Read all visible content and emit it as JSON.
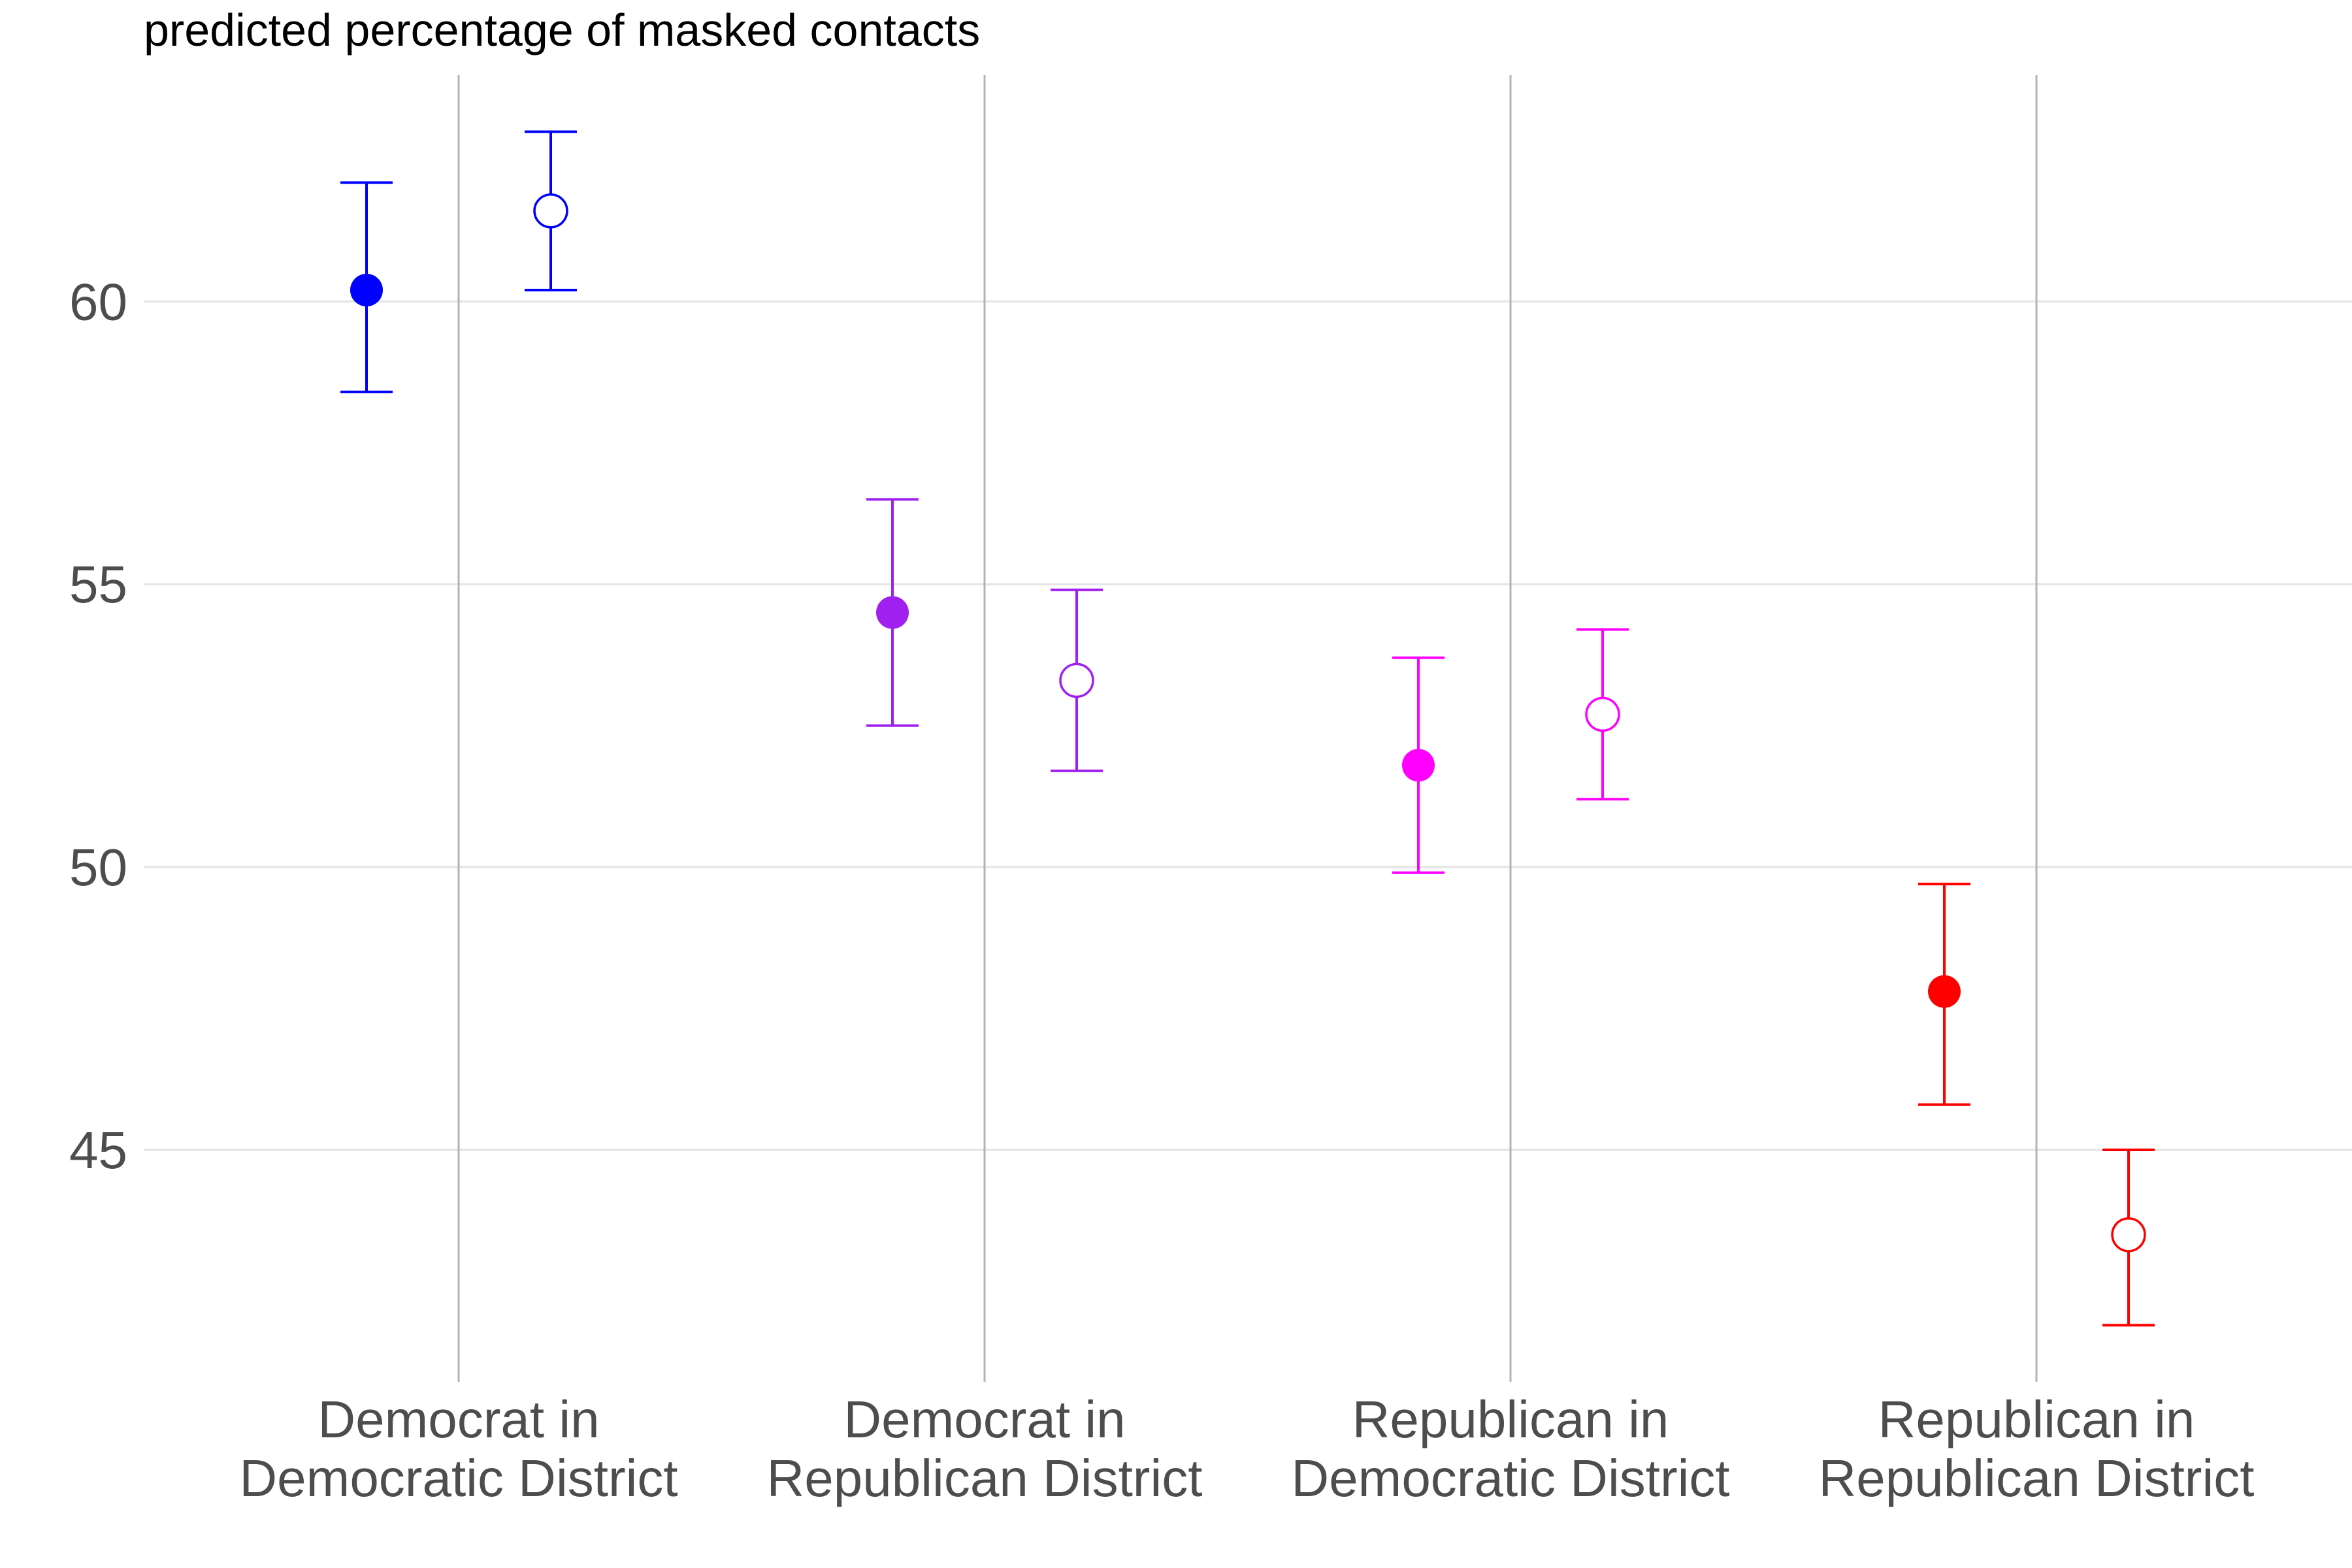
{
  "chart_data": {
    "type": "errorbar",
    "title": "predicted percentage of masked contacts",
    "xlabel": "",
    "ylabel": "",
    "ylim": [
      40.9,
      64.0
    ],
    "yticks": [
      45,
      50,
      55,
      60
    ],
    "grid": true,
    "categories": [
      [
        "Democrat in",
        "Democratic District"
      ],
      [
        "Democrat in",
        "Republican District"
      ],
      [
        "Republican in",
        "Democratic District"
      ],
      [
        "Republican in",
        "Republican District"
      ]
    ],
    "colors": [
      "#0000ff",
      "#a020f0",
      "#ff00ff",
      "#ff0000"
    ],
    "series": [
      {
        "marker": "filled-circle",
        "values": [
          60.2,
          54.5,
          51.8,
          47.8
        ],
        "lower": [
          58.4,
          52.5,
          49.9,
          45.8
        ],
        "upper": [
          62.1,
          56.5,
          53.7,
          49.7
        ]
      },
      {
        "marker": "open-circle",
        "values": [
          61.6,
          53.3,
          52.7,
          43.5
        ],
        "lower": [
          60.2,
          51.7,
          51.2,
          41.9
        ],
        "upper": [
          63.0,
          54.9,
          54.2,
          45.0
        ]
      }
    ]
  }
}
